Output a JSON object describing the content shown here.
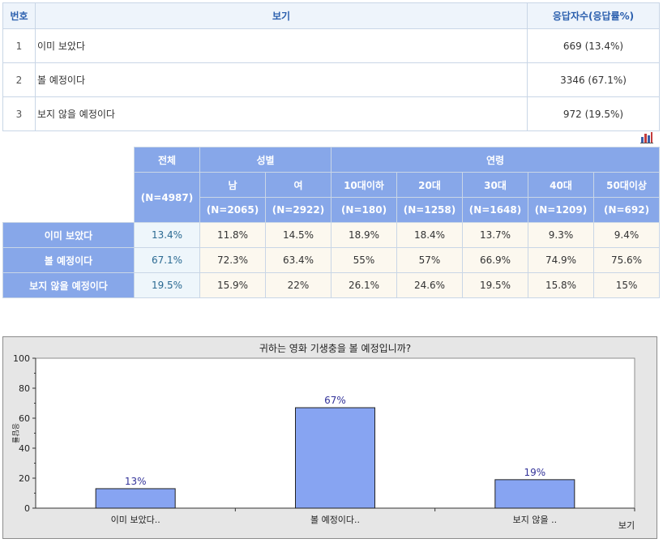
{
  "summary": {
    "headers": {
      "num": "번호",
      "option": "보기",
      "count": "응답자수(응답률%)"
    },
    "rows": [
      {
        "num": "1",
        "option": "이미 보았다",
        "count": "669 (13.4%)"
      },
      {
        "num": "2",
        "option": "볼 예정이다",
        "count": "3346 (67.1%)"
      },
      {
        "num": "3",
        "option": "보지 않을 예정이다",
        "count": "972 (19.5%)"
      }
    ]
  },
  "icons": {
    "chart_link": "bar-chart-icon"
  },
  "crosstab": {
    "total_label": "전체",
    "total_n": "(N=4987)",
    "gender_label": "성별",
    "age_label": "연령",
    "genders": [
      {
        "label": "남",
        "n": "(N=2065)"
      },
      {
        "label": "여",
        "n": "(N=2922)"
      }
    ],
    "ages": [
      {
        "label": "10대이하",
        "n": "(N=180)"
      },
      {
        "label": "20대",
        "n": "(N=1258)"
      },
      {
        "label": "30대",
        "n": "(N=1648)"
      },
      {
        "label": "40대",
        "n": "(N=1209)"
      },
      {
        "label": "50대이상",
        "n": "(N=692)"
      }
    ],
    "rows": [
      {
        "label": "이미 보았다",
        "values": [
          "13.4%",
          "11.8%",
          "14.5%",
          "18.9%",
          "18.4%",
          "13.7%",
          "9.3%",
          "9.4%"
        ]
      },
      {
        "label": "볼 예정이다",
        "values": [
          "67.1%",
          "72.3%",
          "63.4%",
          "55%",
          "57%",
          "66.9%",
          "74.9%",
          "75.6%"
        ]
      },
      {
        "label": "보지 않을 예정이다",
        "values": [
          "19.5%",
          "15.9%",
          "22%",
          "26.1%",
          "24.6%",
          "19.5%",
          "15.8%",
          "15%"
        ]
      }
    ]
  },
  "chart_data": {
    "type": "bar",
    "title": "귀하는 영화 기생충을 볼 예정입니까?",
    "categories": [
      "이미 보았다..",
      "볼 예정이다..",
      "보지 않을 .."
    ],
    "values": [
      13,
      67,
      19
    ],
    "data_labels": [
      "13%",
      "67%",
      "19%"
    ],
    "xlabel": "보기",
    "ylabel": "응답률",
    "ylim": [
      0,
      100
    ],
    "yticks": [
      "0",
      "20",
      "40",
      "60",
      "80",
      "100"
    ],
    "grid": false,
    "bar_color": "#87a4f2",
    "plot_background": "#ffffff",
    "frame_background": "#e6e6e6"
  }
}
